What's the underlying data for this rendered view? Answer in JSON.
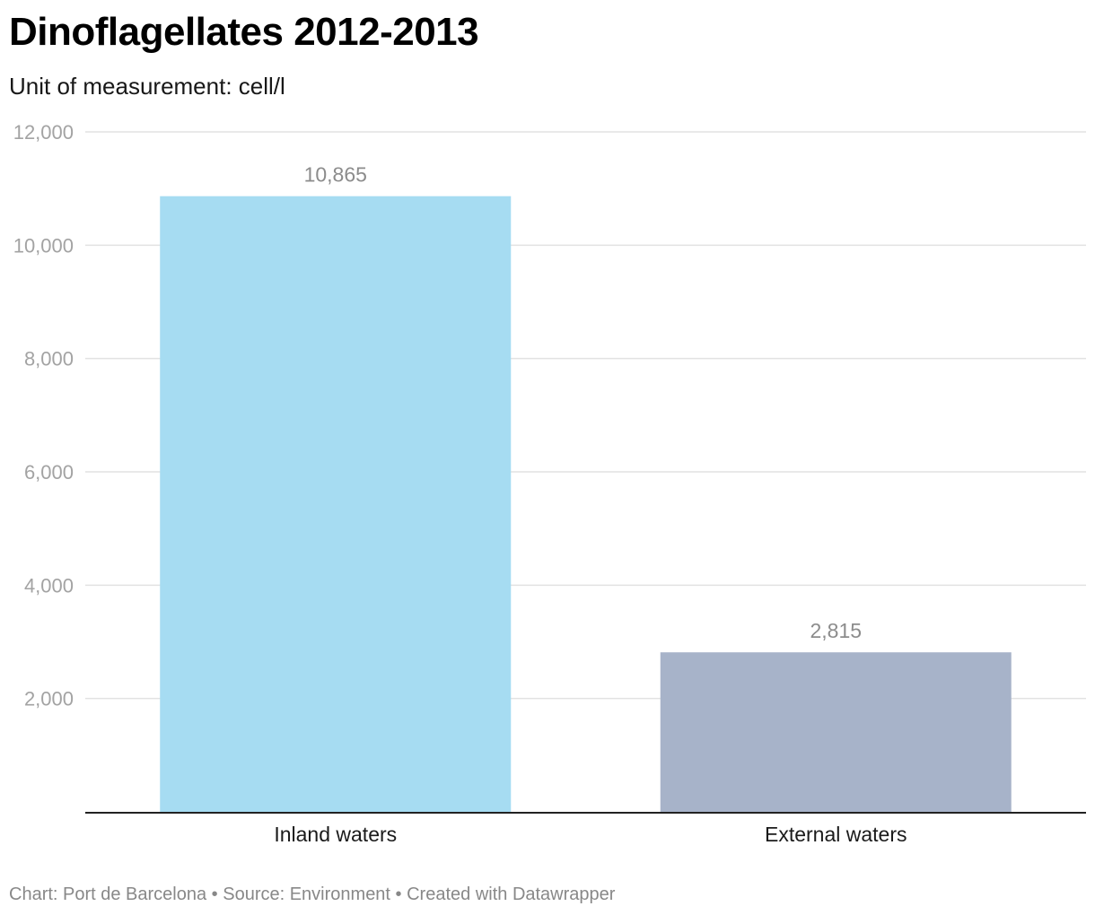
{
  "chart_data": {
    "type": "bar",
    "title": "Dinoflagellates 2012-2013",
    "subtitle": "Unit of measurement: cell/l",
    "categories": [
      "Inland waters",
      "External waters"
    ],
    "values": [
      10865,
      2815
    ],
    "value_labels": [
      "10,865",
      "2,815"
    ],
    "colors": [
      "#a6dcf2",
      "#a7b3c9"
    ],
    "ylim": [
      0,
      12000
    ],
    "yticks": [
      2000,
      4000,
      6000,
      8000,
      10000,
      12000
    ],
    "ytick_labels": [
      "2,000",
      "4,000",
      "6,000",
      "8,000",
      "10,000",
      "12,000"
    ],
    "grid": true,
    "xlabel": "",
    "ylabel": ""
  },
  "footer": {
    "text": "Chart: Port de Barcelona • Source: Environment • Created with Datawrapper"
  }
}
